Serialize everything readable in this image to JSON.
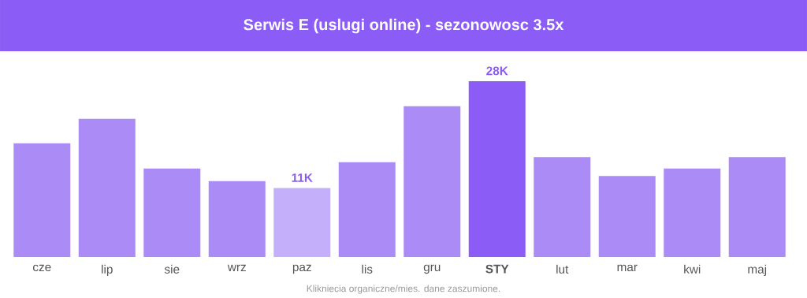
{
  "chart_data": {
    "type": "bar",
    "title": "Serwis E (uslugi online) - sezonowosc 3.5x",
    "categories": [
      "cze",
      "lip",
      "sie",
      "wrz",
      "paz",
      "lis",
      "gru",
      "STY",
      "lut",
      "mar",
      "kwi",
      "maj"
    ],
    "values": [
      18100,
      22000,
      14100,
      12100,
      11000,
      15100,
      24000,
      28000,
      15900,
      12900,
      14100,
      15900
    ],
    "colors": [
      "#ab8bf5",
      "#ab8bf5",
      "#ab8bf5",
      "#ab8bf5",
      "#c4b0fa",
      "#ab8bf5",
      "#ab8bf5",
      "#8b5cf6",
      "#ab8bf5",
      "#ab8bf5",
      "#ab8bf5",
      "#ab8bf5"
    ],
    "value_labels": [
      null,
      null,
      null,
      null,
      "11K",
      null,
      null,
      "28K",
      null,
      null,
      null,
      null
    ],
    "annotations": [
      "Klikniecia organiczne/mies. dane zaszumione."
    ]
  }
}
